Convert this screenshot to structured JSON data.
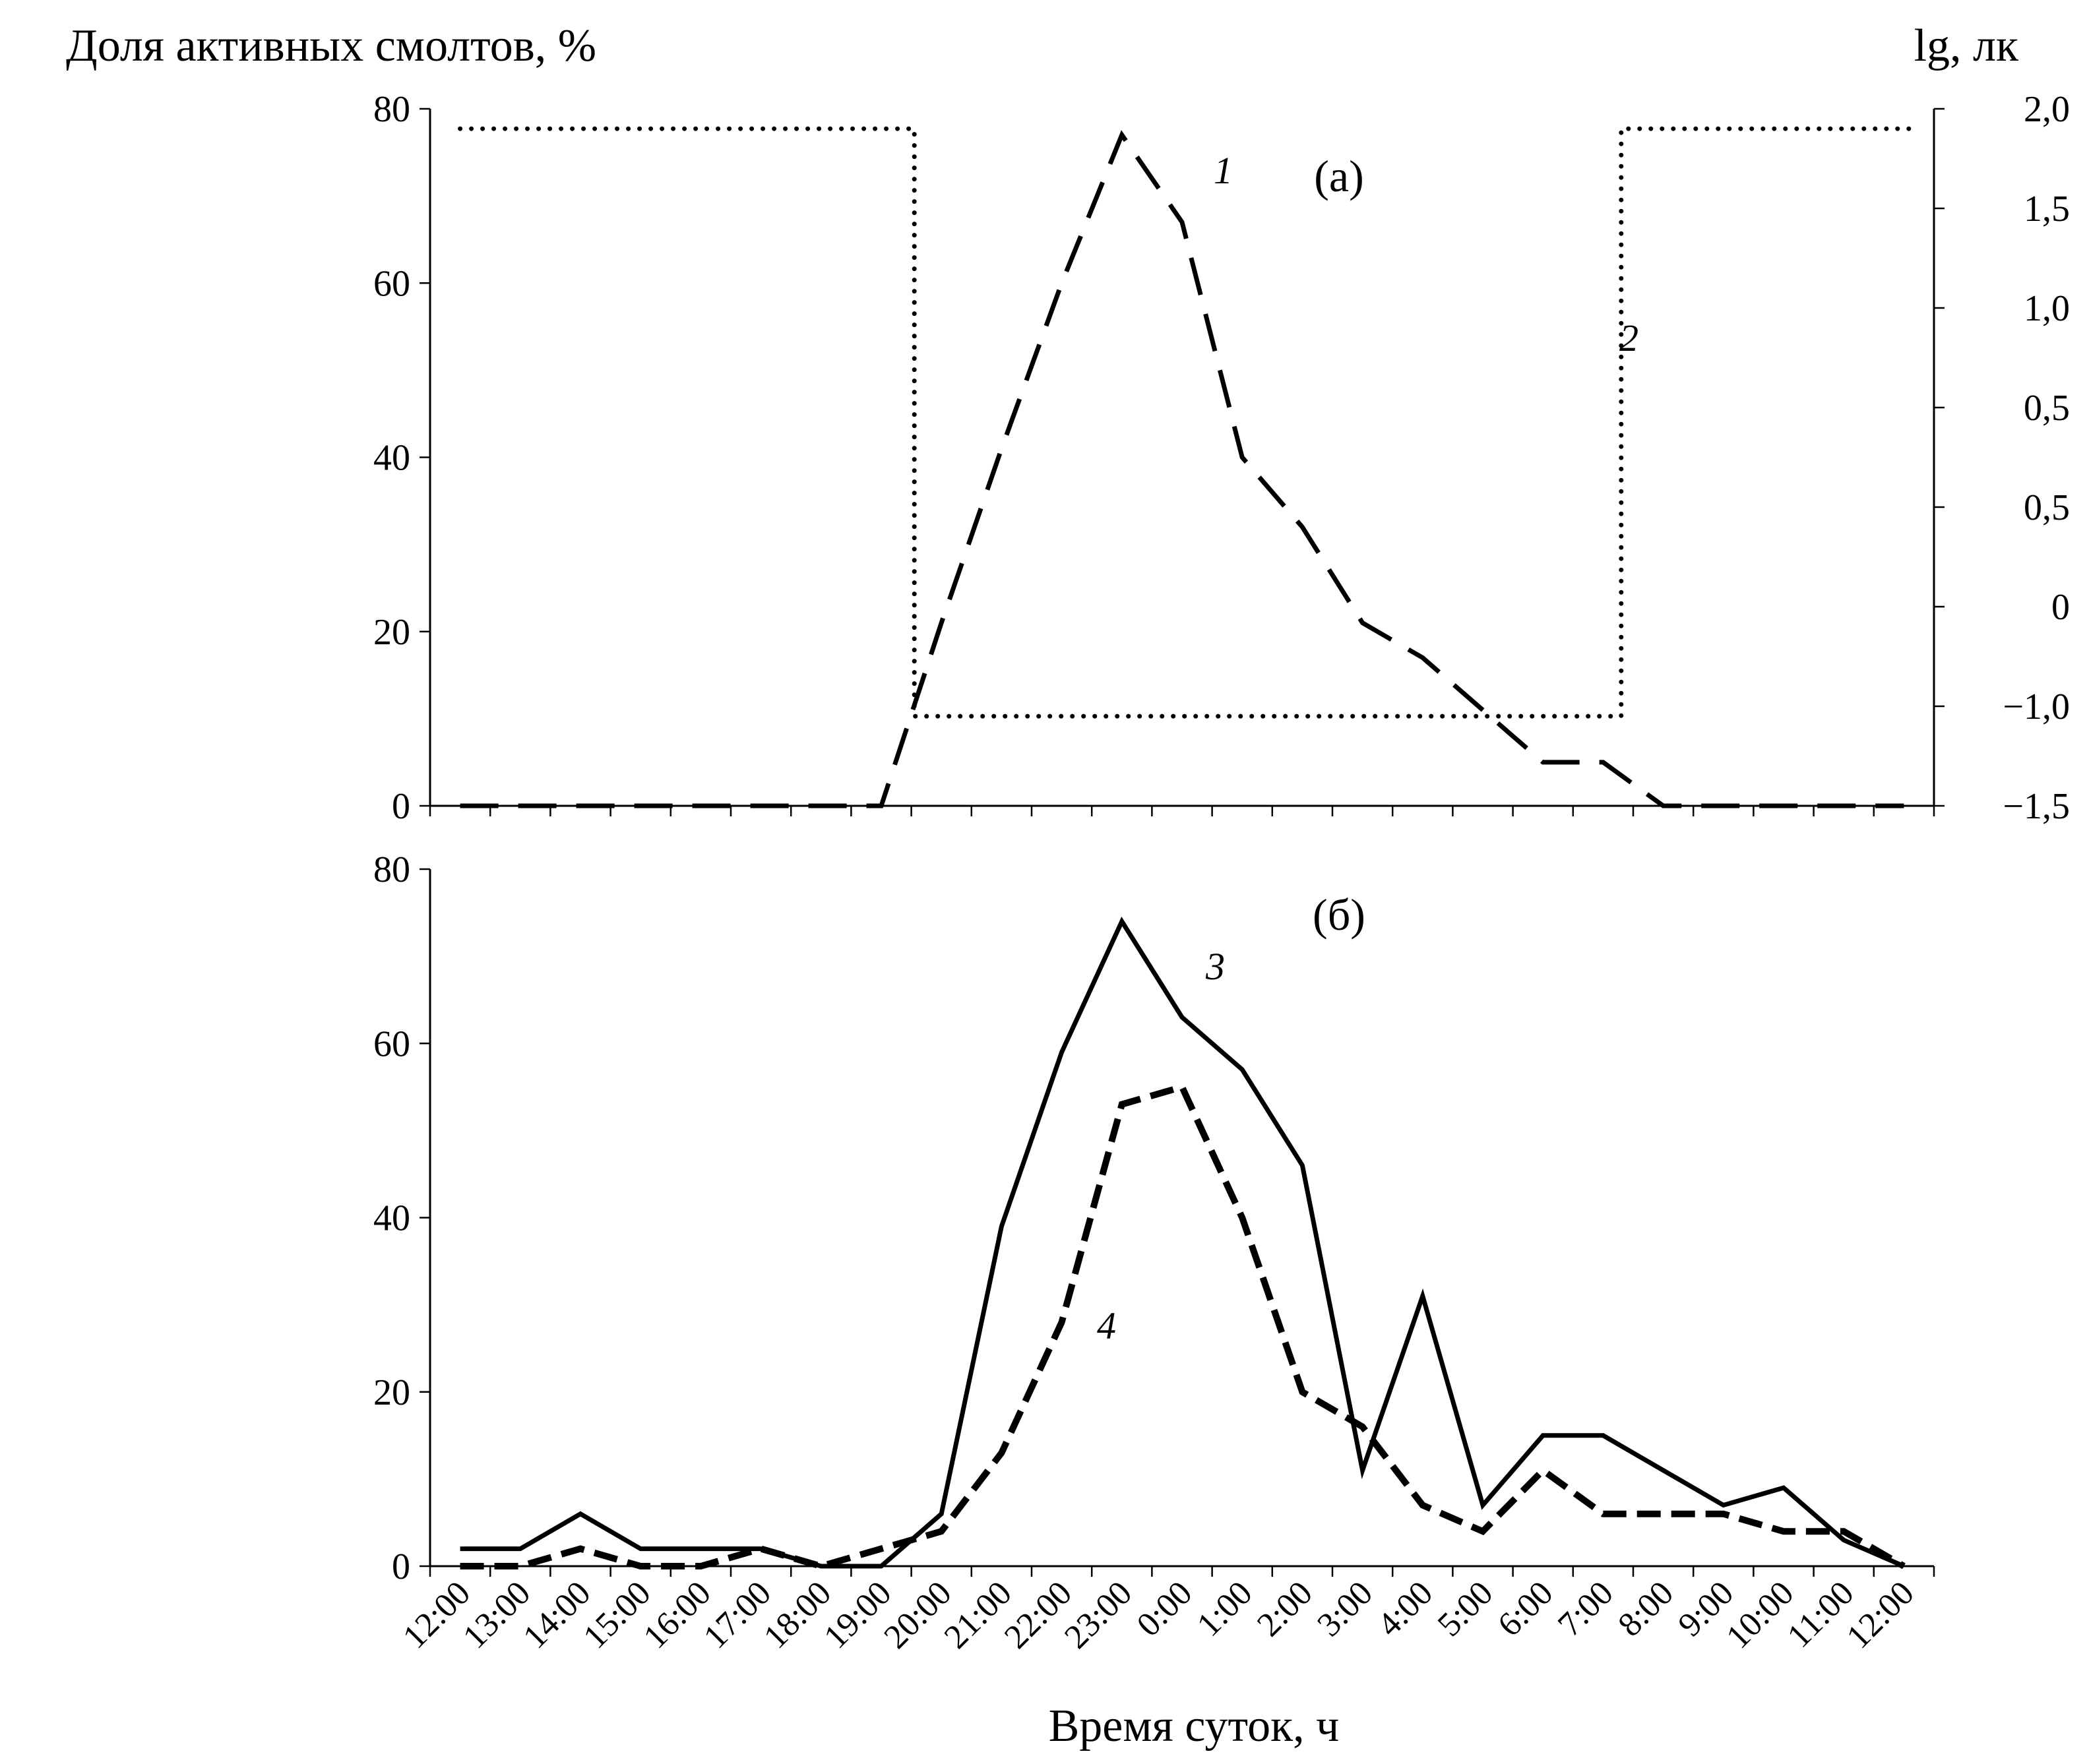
{
  "chart_data": [
    {
      "type": "line",
      "panel_label": "(а)",
      "ylabel": "Доля активных смолтов, %",
      "y2label": "lg, лк",
      "ylim": [
        0,
        80
      ],
      "y_ticks": [
        "0",
        "20",
        "40",
        "60",
        "80"
      ],
      "y2_ticks": [
        "−1,5",
        "−1,0",
        "0",
        "0,5",
        "0,5",
        "1,0",
        "1,5",
        "2,0"
      ],
      "grid": false,
      "x_slots": 25,
      "series": [
        {
          "name": "1",
          "axis": "left",
          "style": "dashed",
          "x": [
            0,
            1,
            2,
            3,
            4,
            5,
            6,
            7,
            8,
            9,
            10,
            11,
            12,
            13,
            14,
            15,
            16,
            17,
            18,
            19,
            20,
            21,
            22,
            23,
            24
          ],
          "values": [
            0,
            0,
            0,
            0,
            0,
            0,
            0,
            0,
            21,
            41,
            60,
            77,
            67,
            40,
            32,
            21,
            17,
            11,
            5,
            5,
            0,
            0,
            0,
            0,
            0
          ]
        },
        {
          "name": "2",
          "axis": "right",
          "style": "dotted",
          "points": [
            [
              0,
              1.9
            ],
            [
              7.55,
              1.9
            ],
            [
              7.55,
              -1.05
            ],
            [
              19.3,
              -1.05
            ],
            [
              19.3,
              1.9
            ],
            [
              24.2,
              1.9
            ]
          ]
        }
      ]
    },
    {
      "type": "line",
      "panel_label": "(б)",
      "ylim": [
        0,
        80
      ],
      "y_ticks": [
        "0",
        "20",
        "40",
        "60",
        "80"
      ],
      "grid": false,
      "x_slots": 25,
      "xlabel": "Время суток, ч",
      "categories": [
        "12:00",
        "13:00",
        "14:00",
        "15:00",
        "16:00",
        "17:00",
        "18:00",
        "19:00",
        "20:00",
        "21:00",
        "22:00",
        "23:00",
        "0:00",
        "1:00",
        "2:00",
        "3:00",
        "4:00",
        "5:00",
        "6:00",
        "7:00",
        "8:00",
        "9:00",
        "10:00",
        "11:00",
        "12:00"
      ],
      "series": [
        {
          "name": "3",
          "style": "solid",
          "x": [
            0,
            1,
            2,
            3,
            4,
            5,
            6,
            7,
            8,
            9,
            10,
            11,
            12,
            13,
            14,
            15,
            16,
            17,
            18,
            19,
            20,
            21,
            22,
            23,
            24
          ],
          "values": [
            2,
            2,
            6,
            2,
            2,
            2,
            0,
            0,
            6,
            39,
            59,
            74,
            63,
            57,
            46,
            11,
            31,
            7,
            15,
            15,
            11,
            7,
            9,
            3,
            0
          ]
        },
        {
          "name": "4",
          "style": "dashed",
          "x": [
            0,
            1,
            2,
            3,
            4,
            5,
            6,
            7,
            8,
            9,
            10,
            11,
            12,
            13,
            14,
            15,
            16,
            17,
            18,
            19,
            20,
            21,
            22,
            23,
            24
          ],
          "values": [
            0,
            0,
            2,
            0,
            0,
            2,
            0,
            2,
            4,
            13,
            28,
            53,
            55,
            40,
            20,
            16,
            7,
            4,
            11,
            6,
            6,
            6,
            4,
            4,
            0
          ]
        }
      ]
    }
  ]
}
